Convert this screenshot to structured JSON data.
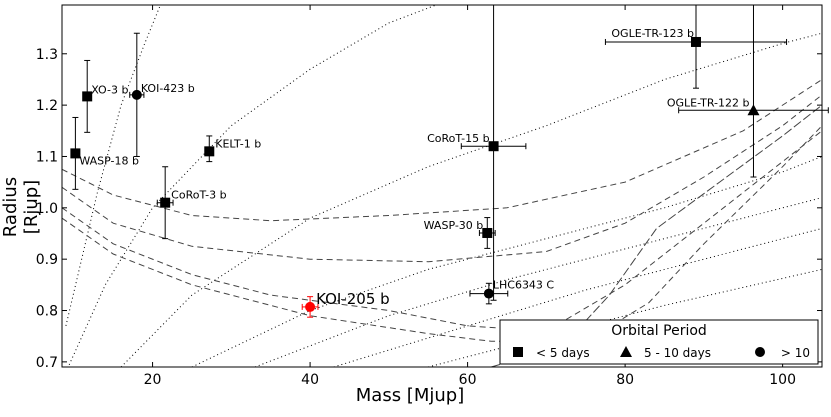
{
  "chart_data": {
    "type": "scatter",
    "xlabel": "Mass [Mjup]",
    "ylabel": "Radius [Rjup]",
    "xlim": [
      8.5,
      105
    ],
    "ylim": [
      0.69,
      1.395
    ],
    "xticks": [
      "20",
      "40",
      "60",
      "80",
      "100"
    ],
    "xtick_values": [
      20,
      40,
      60,
      80,
      100
    ],
    "yticks": [
      "0.7",
      "0.8",
      "0.9",
      "1.0",
      "1.1",
      "1.2",
      "1.3"
    ],
    "ytick_values": [
      0.7,
      0.8,
      0.9,
      1.0,
      1.1,
      1.2,
      1.3
    ],
    "grid": false,
    "legend": {
      "title": "Orbital Period",
      "position": "lower-right",
      "entries": [
        {
          "marker": "square",
          "label": "< 5 days"
        },
        {
          "marker": "triangle",
          "label": "5 - 10 days"
        },
        {
          "marker": "circle",
          "label": "> 10"
        }
      ]
    },
    "series": [
      {
        "label": "WASP-18 b",
        "x": 10.2,
        "y": 1.106,
        "xerr": 0.35,
        "yerr_lo": 0.07,
        "yerr_hi": 0.07,
        "marker": "square",
        "color": "#000000"
      },
      {
        "label": "XO-3 b",
        "x": 11.7,
        "y": 1.217,
        "xerr": 0.45,
        "yerr_lo": 0.07,
        "yerr_hi": 0.07,
        "marker": "square",
        "color": "#000000"
      },
      {
        "label": "KOI-423 b",
        "x": 18.0,
        "y": 1.22,
        "xerr": 0.9,
        "yerr_lo": 0.12,
        "yerr_hi": 0.12,
        "marker": "circle",
        "color": "#000000"
      },
      {
        "label": "KELT-1 b",
        "x": 27.2,
        "y": 1.11,
        "xerr": 0.5,
        "yerr_lo": 0.02,
        "yerr_hi": 0.03,
        "marker": "square",
        "color": "#000000"
      },
      {
        "label": "CoRoT-3 b",
        "x": 21.6,
        "y": 1.01,
        "xerr": 1.0,
        "yerr_lo": 0.07,
        "yerr_hi": 0.07,
        "marker": "square",
        "color": "#000000"
      },
      {
        "label": "KOI-205 b",
        "x": 40.0,
        "y": 0.807,
        "xerr": 1.0,
        "yerr_lo": 0.02,
        "yerr_hi": 0.02,
        "marker": "circle",
        "color": "#ff0000",
        "highlight": true
      },
      {
        "label": "CoRoT-15 b",
        "x": 63.3,
        "y": 1.12,
        "xerr": 4.1,
        "yerr_lo": 0.3,
        "yerr_hi": 0.3,
        "marker": "square",
        "color": "#000000"
      },
      {
        "label": "WASP-30 b",
        "x": 62.5,
        "y": 0.951,
        "xerr": 1.0,
        "yerr_lo": 0.03,
        "yerr_hi": 0.03,
        "marker": "square",
        "color": "#000000"
      },
      {
        "label": "LHC6343 C",
        "x": 62.7,
        "y": 0.833,
        "xerr": 2.4,
        "yerr_lo": 0.02,
        "yerr_hi": 0.02,
        "marker": "circle",
        "color": "#000000"
      },
      {
        "label": "OGLE-TR-123 b",
        "x": 89.0,
        "y": 1.323,
        "xerr": 11.5,
        "yerr_lo": 0.09,
        "yerr_hi": 0.2,
        "marker": "square",
        "color": "#000000"
      },
      {
        "label": "OGLE-TR-122 b",
        "x": 96.3,
        "y": 1.19,
        "xerr": 9.5,
        "yerr_lo": 0.13,
        "yerr_hi": 0.3,
        "marker": "triangle",
        "color": "#000000"
      }
    ],
    "dotted_curves": [
      [
        [
          9,
          0.77
        ],
        [
          13,
          1.03
        ],
        [
          16,
          1.2
        ],
        [
          19,
          1.32
        ],
        [
          21,
          1.395
        ]
      ],
      [
        [
          9,
          0.68
        ],
        [
          14,
          0.85
        ],
        [
          20,
          1.0
        ],
        [
          30,
          1.16
        ],
        [
          40,
          1.27
        ],
        [
          50,
          1.36
        ],
        [
          56,
          1.395
        ]
      ],
      [
        [
          16,
          0.69
        ],
        [
          25,
          0.83
        ],
        [
          40,
          0.98
        ],
        [
          55,
          1.08
        ],
        [
          70,
          1.16
        ],
        [
          85,
          1.25
        ],
        [
          100,
          1.32
        ],
        [
          105,
          1.34
        ]
      ],
      [
        [
          25,
          0.69
        ],
        [
          40,
          0.8
        ],
        [
          55,
          0.88
        ],
        [
          70,
          0.94
        ],
        [
          85,
          1.0
        ],
        [
          100,
          1.07
        ],
        [
          105,
          1.1
        ]
      ],
      [
        [
          33,
          0.69
        ],
        [
          50,
          0.79
        ],
        [
          65,
          0.86
        ],
        [
          80,
          0.92
        ],
        [
          95,
          0.98
        ],
        [
          105,
          1.02
        ]
      ],
      [
        [
          43,
          0.69
        ],
        [
          60,
          0.77
        ],
        [
          75,
          0.84
        ],
        [
          90,
          0.9
        ],
        [
          105,
          0.96
        ]
      ],
      [
        [
          55,
          0.69
        ],
        [
          70,
          0.75
        ],
        [
          85,
          0.81
        ],
        [
          105,
          0.88
        ]
      ]
    ],
    "dashed_curves": [
      [
        [
          8.5,
          1.075
        ],
        [
          15,
          1.025
        ],
        [
          25,
          0.985
        ],
        [
          35,
          0.975
        ],
        [
          50,
          0.985
        ],
        [
          65,
          1.0
        ],
        [
          80,
          1.05
        ],
        [
          95,
          1.15
        ],
        [
          105,
          1.25
        ]
      ],
      [
        [
          8.5,
          1.04
        ],
        [
          15,
          0.97
        ],
        [
          25,
          0.925
        ],
        [
          40,
          0.9
        ],
        [
          55,
          0.895
        ],
        [
          70,
          0.915
        ],
        [
          80,
          0.97
        ],
        [
          90,
          1.06
        ],
        [
          100,
          1.16
        ],
        [
          105,
          1.22
        ]
      ],
      [
        [
          8.5,
          1.0
        ],
        [
          15,
          0.93
        ],
        [
          25,
          0.87
        ],
        [
          35,
          0.83
        ],
        [
          50,
          0.8
        ],
        [
          60,
          0.77
        ],
        [
          70,
          0.76
        ],
        [
          80,
          0.85
        ],
        [
          90,
          0.97
        ],
        [
          100,
          1.09
        ],
        [
          105,
          1.15
        ]
      ],
      [
        [
          8.5,
          0.98
        ],
        [
          15,
          0.91
        ],
        [
          25,
          0.85
        ],
        [
          40,
          0.79
        ],
        [
          55,
          0.755
        ],
        [
          63,
          0.74
        ],
        [
          75,
          0.74
        ],
        [
          83,
          0.815
        ],
        [
          90,
          0.93
        ],
        [
          100,
          1.08
        ],
        [
          105,
          1.16
        ]
      ],
      [
        [
          63,
          0.69
        ],
        [
          72,
          0.73
        ],
        [
          78,
          0.83
        ],
        [
          84,
          0.96
        ],
        [
          92,
          1.05
        ],
        [
          100,
          1.14
        ],
        [
          105,
          1.2
        ]
      ]
    ]
  }
}
